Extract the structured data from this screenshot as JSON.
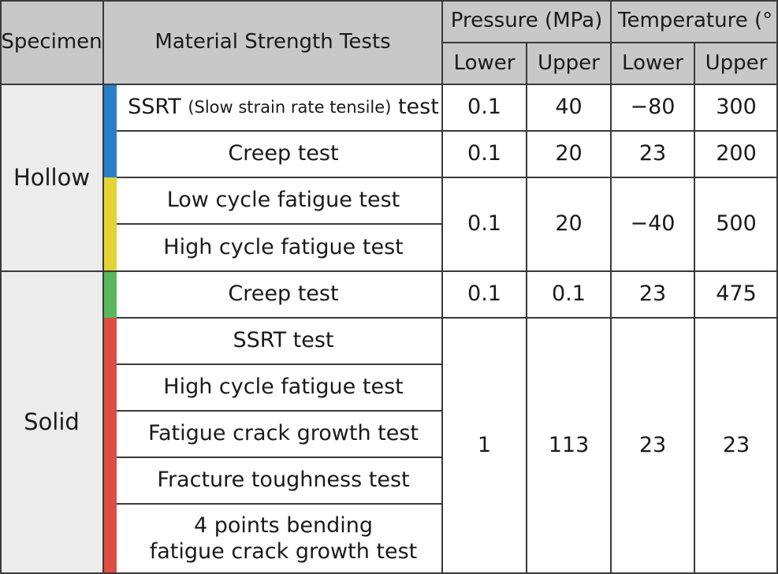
{
  "header": {
    "specimen": "Specimen",
    "tests": "Material Strength Tests",
    "pressure": "Pressure (MPa)",
    "temperature": "Temperature (°",
    "lower": "Lower",
    "upper": "Upper"
  },
  "groups": {
    "hollow": "Hollow",
    "solid": "Solid"
  },
  "rows": {
    "ssrt_pre": "SSRT ",
    "ssrt_small": "(Slow strain rate tensile)",
    "ssrt_post": " test",
    "creep_hollow": "Creep test",
    "low_cycle": "Low cycle fatigue test",
    "high_cycle_hollow": "High cycle fatigue test",
    "creep_solid": "Creep test",
    "ssrt_solid": "SSRT test",
    "high_cycle_solid": "High cycle fatigue test",
    "fatigue_crack": "Fatigue crack growth test",
    "fracture": "Fracture toughness test",
    "bending_line1": "4 points bending",
    "bending_line2": "fatigue crack growth test"
  },
  "values": {
    "ssrt": {
      "p_lower": "0.1",
      "p_upper": "40",
      "t_lower": "−80",
      "t_upper": "300"
    },
    "creep_hollow": {
      "p_lower": "0.1",
      "p_upper": "20",
      "t_lower": "23",
      "t_upper": "200"
    },
    "fatigue_hollow": {
      "p_lower": "0.1",
      "p_upper": "20",
      "t_lower": "−40",
      "t_upper": "500"
    },
    "creep_solid": {
      "p_lower": "0.1",
      "p_upper": "0.1",
      "t_lower": "23",
      "t_upper": "475"
    },
    "solid_rest": {
      "p_lower": "1",
      "p_upper": "113",
      "t_lower": "23",
      "t_upper": "23"
    }
  },
  "colors": {
    "blue": "#2a7fc9",
    "yellow": "#e3d333",
    "green": "#58b85a",
    "red": "#df4d43",
    "header_bg": "#c8c8c8",
    "specimen_bg": "#ececec"
  }
}
